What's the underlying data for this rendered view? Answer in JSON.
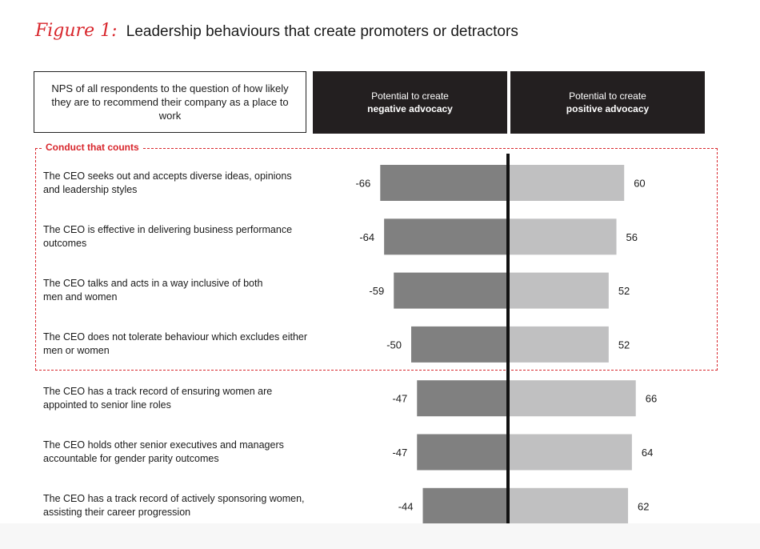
{
  "figure": {
    "label": "Figure 1:",
    "title": "Leadership behaviours that create promoters or detractors"
  },
  "question": "NPS of all respondents to the question of how likely they are to recommend their company as a place to work",
  "headers": {
    "negative_line1": "Potential to create",
    "negative_line2": "negative advocacy",
    "positive_line1": "Potential to create",
    "positive_line2": "positive advocacy"
  },
  "conduct_label": "Conduct that counts",
  "colors": {
    "negative_bar": "#808080",
    "positive_bar": "#c0c0c1",
    "accent": "#d8262c",
    "header_bg": "#231f20"
  },
  "chart_data": {
    "type": "bar",
    "orientation": "horizontal-diverging",
    "title": "Leadership behaviours that create promoters or detractors",
    "xlim": [
      -66,
      66
    ],
    "categories": [
      {
        "line1": "The CEO seeks out and accepts diverse ideas, opinions",
        "line2": "and leadership styles"
      },
      {
        "line1": "The CEO is effective in delivering business performance",
        "line2": "outcomes"
      },
      {
        "line1": "The CEO talks and acts in a way inclusive of both",
        "line2": "men and women"
      },
      {
        "line1": "The CEO does not tolerate behaviour which excludes either",
        "line2": "men or women"
      },
      {
        "line1": "The CEO has a track record of ensuring women are",
        "line2": "appointed to senior line roles"
      },
      {
        "line1": "The CEO holds other senior executives and managers",
        "line2": "accountable for gender parity outcomes"
      },
      {
        "line1": "The CEO has a track record of actively sponsoring women,",
        "line2": "assisting their career progression"
      }
    ],
    "series": [
      {
        "name": "negative advocacy",
        "values": [
          -66,
          -64,
          -59,
          -50,
          -47,
          -47,
          -44
        ]
      },
      {
        "name": "positive advocacy",
        "values": [
          60,
          56,
          52,
          52,
          66,
          64,
          62
        ]
      }
    ],
    "highlighted_group": {
      "label": "Conduct that counts",
      "count": 4
    }
  }
}
